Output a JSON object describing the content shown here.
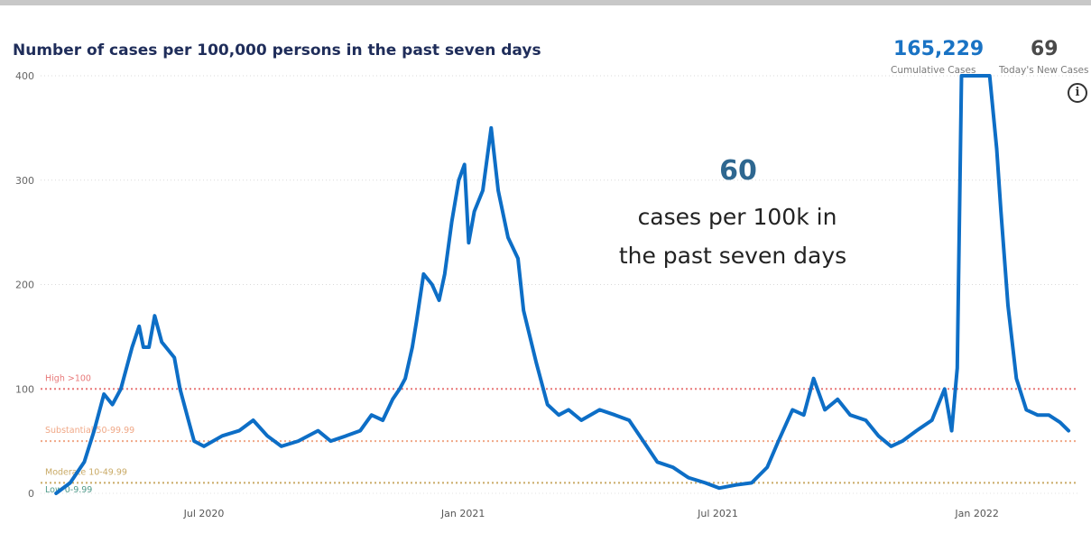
{
  "title": "Number of cases per 100,000 persons in the past seven days",
  "kpis": {
    "cumulative_value": "165,229",
    "cumulative_label": "Cumulative Cases",
    "new_value": "69",
    "new_label": "Today's New Cases"
  },
  "info_icon": "info-icon",
  "annotation": {
    "value": "60",
    "line1": "cases per 100k in",
    "line2": "the past seven days"
  },
  "colors": {
    "line": "#0d6ec6",
    "high": "#e87979",
    "substantial": "#f0a887",
    "moderate": "#c9aa66",
    "low": "#4f9a8a"
  },
  "chart_data": {
    "type": "line",
    "title": "Number of cases per 100,000 persons in the past seven days",
    "xlabel": "",
    "ylabel": "",
    "ylim": [
      0,
      400
    ],
    "yticks": [
      0,
      100,
      200,
      300,
      400
    ],
    "xtick_labels": [
      {
        "date": "2020-07-01",
        "label": "Jul 2020"
      },
      {
        "date": "2021-01-01",
        "label": "Jan 2021"
      },
      {
        "date": "2021-07-01",
        "label": "Jul 2021"
      },
      {
        "date": "2022-01-01",
        "label": "Jan 2022"
      }
    ],
    "grid": true,
    "thresholds": [
      {
        "label": "High >100",
        "value": 100,
        "color": "#e87979"
      },
      {
        "label": "Substantial 50-99.99",
        "value": 50,
        "color": "#f0a887"
      },
      {
        "label": "Moderate 10-49.99",
        "value": 10,
        "color": "#c9aa66"
      },
      {
        "label": "Low 0-9.99",
        "value": 0,
        "color": "#4f9a8a"
      }
    ],
    "series": [
      {
        "x": [
          "2020-03-18",
          "2020-03-28",
          "2020-04-07",
          "2020-04-14",
          "2020-04-21",
          "2020-04-27",
          "2020-05-03",
          "2020-05-11",
          "2020-05-16",
          "2020-05-19",
          "2020-05-23",
          "2020-05-27",
          "2020-06-01",
          "2020-06-04",
          "2020-06-10",
          "2020-06-14",
          "2020-06-20",
          "2020-06-24",
          "2020-07-01",
          "2020-07-14",
          "2020-07-26",
          "2020-08-05",
          "2020-08-15",
          "2020-08-25",
          "2020-09-06",
          "2020-09-20",
          "2020-09-29",
          "2020-10-10",
          "2020-10-20",
          "2020-10-28",
          "2020-11-05",
          "2020-11-12",
          "2020-11-17",
          "2020-11-21",
          "2020-11-26",
          "2020-11-29",
          "2020-12-04",
          "2020-12-10",
          "2020-12-15",
          "2020-12-19",
          "2020-12-24",
          "2020-12-29",
          "2021-01-02",
          "2021-01-05",
          "2021-01-09",
          "2021-01-15",
          "2021-01-21",
          "2021-01-26",
          "2021-02-02",
          "2021-02-09",
          "2021-02-13",
          "2021-02-22",
          "2021-03-02",
          "2021-03-10",
          "2021-03-17",
          "2021-03-26",
          "2021-04-08",
          "2021-04-19",
          "2021-04-29",
          "2021-05-09",
          "2021-05-19",
          "2021-05-30",
          "2021-06-10",
          "2021-06-22",
          "2021-07-02",
          "2021-07-14",
          "2021-07-25",
          "2021-08-05",
          "2021-08-13",
          "2021-08-23",
          "2021-08-31",
          "2021-09-07",
          "2021-09-15",
          "2021-09-24",
          "2021-10-03",
          "2021-10-14",
          "2021-10-23",
          "2021-11-01",
          "2021-11-09",
          "2021-11-19",
          "2021-11-30",
          "2021-12-09",
          "2021-12-14",
          "2021-12-18",
          "2021-12-21",
          "2021-12-25",
          "2021-12-29",
          "2022-01-10",
          "2022-01-15",
          "2022-01-18",
          "2022-01-23",
          "2022-01-29",
          "2022-02-05",
          "2022-02-13",
          "2022-02-21",
          "2022-03-01",
          "2022-03-07"
        ],
        "y": [
          0,
          10,
          30,
          60,
          95,
          85,
          100,
          140,
          160,
          140,
          140,
          170,
          145,
          140,
          130,
          100,
          70,
          50,
          45,
          55,
          60,
          70,
          55,
          45,
          50,
          60,
          50,
          55,
          60,
          75,
          70,
          90,
          100,
          110,
          140,
          165,
          210,
          200,
          185,
          210,
          260,
          300,
          315,
          240,
          270,
          290,
          350,
          290,
          245,
          225,
          175,
          125,
          85,
          75,
          80,
          70,
          80,
          75,
          70,
          50,
          30,
          25,
          15,
          10,
          5,
          8,
          10,
          25,
          50,
          80,
          75,
          110,
          80,
          90,
          75,
          70,
          55,
          45,
          50,
          60,
          70,
          100,
          60,
          120,
          400,
          400,
          400,
          400,
          330,
          270,
          180,
          110,
          80,
          75,
          75,
          68,
          60
        ]
      }
    ]
  }
}
